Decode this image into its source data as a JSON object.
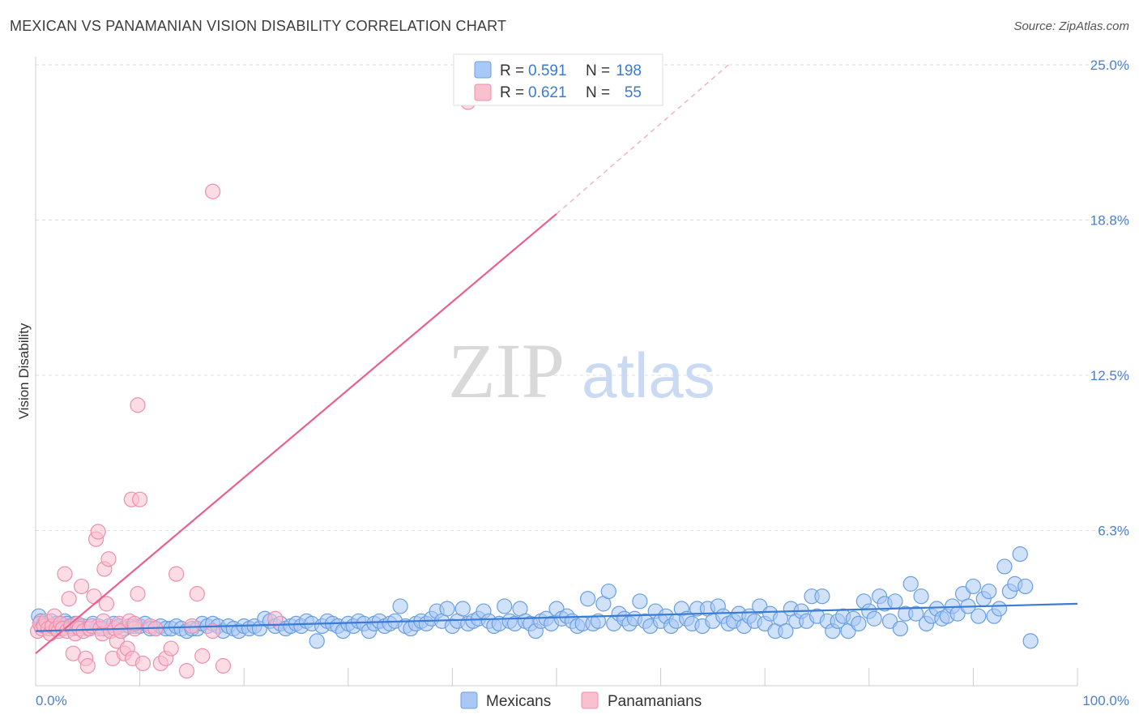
{
  "header": {
    "title": "MEXICAN VS PANAMANIAN VISION DISABILITY CORRELATION CHART",
    "source": "Source: ZipAtlas.com"
  },
  "watermark": {
    "zip": "ZIP",
    "atlas": "atlas"
  },
  "legend": {
    "r_label": "R =",
    "n_label": "N =",
    "items": [
      {
        "r": "0.591",
        "n": "198",
        "fill": "#aac8f5",
        "stroke": "#6a9fe0"
      },
      {
        "r": "0.621",
        "n": "55",
        "fill": "#f9c0d0",
        "stroke": "#ef8fab"
      }
    ]
  },
  "colors": {
    "blue": "#3a7bd5",
    "pink": "#e8608f",
    "blue_fill": "#aac8f5",
    "pink_fill": "#f9c0d0"
  },
  "chart_data": {
    "type": "scatter",
    "title": "MEXICAN VS PANAMANIAN VISION DISABILITY CORRELATION CHART",
    "xlabel": "",
    "ylabel": "Vision Disability",
    "xlim": [
      0,
      100
    ],
    "ylim": [
      0,
      25
    ],
    "y_ticks": [
      {
        "value": 6.25,
        "label": "6.3%"
      },
      {
        "value": 12.5,
        "label": "12.5%"
      },
      {
        "value": 18.75,
        "label": "18.8%"
      },
      {
        "value": 25.0,
        "label": "25.0%"
      }
    ],
    "x_tick_labels": {
      "min": "0.0%",
      "max": "100.0%"
    },
    "series": [
      {
        "name": "Mexicans",
        "r": 0.591,
        "n": 198,
        "trend": {
          "x": [
            0,
            100
          ],
          "y": [
            2.2,
            3.3
          ]
        },
        "points": [
          [
            0.3,
            2.8
          ],
          [
            0.5,
            2.6
          ],
          [
            0.8,
            2.5
          ],
          [
            1.0,
            2.4
          ],
          [
            1.3,
            2.3
          ],
          [
            1.5,
            2.6
          ],
          [
            1.8,
            2.4
          ],
          [
            2.0,
            2.5
          ],
          [
            2.3,
            2.3
          ],
          [
            2.5,
            2.4
          ],
          [
            2.8,
            2.6
          ],
          [
            3.0,
            2.5
          ],
          [
            3.3,
            2.4
          ],
          [
            3.5,
            2.3
          ],
          [
            3.8,
            2.5
          ],
          [
            4.0,
            2.4
          ],
          [
            4.5,
            2.4
          ],
          [
            5.0,
            2.3
          ],
          [
            5.5,
            2.5
          ],
          [
            6.0,
            2.4
          ],
          [
            6.5,
            2.3
          ],
          [
            7.0,
            2.4
          ],
          [
            7.5,
            2.5
          ],
          [
            8.0,
            2.4
          ],
          [
            8.5,
            2.3
          ],
          [
            9.0,
            2.4
          ],
          [
            9.5,
            2.4
          ],
          [
            10.0,
            2.4
          ],
          [
            10.5,
            2.5
          ],
          [
            11.0,
            2.3
          ],
          [
            11.5,
            2.3
          ],
          [
            12.0,
            2.4
          ],
          [
            12.5,
            2.3
          ],
          [
            13.0,
            2.3
          ],
          [
            13.5,
            2.4
          ],
          [
            14.0,
            2.3
          ],
          [
            14.5,
            2.2
          ],
          [
            15.0,
            2.3
          ],
          [
            15.5,
            2.3
          ],
          [
            16.0,
            2.5
          ],
          [
            16.5,
            2.4
          ],
          [
            17.0,
            2.5
          ],
          [
            17.5,
            2.4
          ],
          [
            18.0,
            2.2
          ],
          [
            18.5,
            2.4
          ],
          [
            19.0,
            2.3
          ],
          [
            19.5,
            2.2
          ],
          [
            20.0,
            2.4
          ],
          [
            20.5,
            2.3
          ],
          [
            21.0,
            2.4
          ],
          [
            21.5,
            2.3
          ],
          [
            22.0,
            2.7
          ],
          [
            22.5,
            2.6
          ],
          [
            23.0,
            2.4
          ],
          [
            23.5,
            2.5
          ],
          [
            24.0,
            2.3
          ],
          [
            24.5,
            2.4
          ],
          [
            25.0,
            2.5
          ],
          [
            25.5,
            2.4
          ],
          [
            26.0,
            2.6
          ],
          [
            26.5,
            2.5
          ],
          [
            27.0,
            1.8
          ],
          [
            27.5,
            2.4
          ],
          [
            28.0,
            2.6
          ],
          [
            28.5,
            2.5
          ],
          [
            29.0,
            2.4
          ],
          [
            29.5,
            2.2
          ],
          [
            30.0,
            2.5
          ],
          [
            30.5,
            2.4
          ],
          [
            31.0,
            2.6
          ],
          [
            31.5,
            2.5
          ],
          [
            32.0,
            2.2
          ],
          [
            32.5,
            2.5
          ],
          [
            33.0,
            2.6
          ],
          [
            33.5,
            2.4
          ],
          [
            34.0,
            2.5
          ],
          [
            34.5,
            2.6
          ],
          [
            35.0,
            3.2
          ],
          [
            35.5,
            2.4
          ],
          [
            36.0,
            2.3
          ],
          [
            36.5,
            2.5
          ],
          [
            37.0,
            2.6
          ],
          [
            37.5,
            2.5
          ],
          [
            38.0,
            2.7
          ],
          [
            38.5,
            3.0
          ],
          [
            39.0,
            2.6
          ],
          [
            39.5,
            3.1
          ],
          [
            40.0,
            2.4
          ],
          [
            40.5,
            2.6
          ],
          [
            41.0,
            3.1
          ],
          [
            41.5,
            2.5
          ],
          [
            42.0,
            2.6
          ],
          [
            42.5,
            2.7
          ],
          [
            43.0,
            3.0
          ],
          [
            43.5,
            2.6
          ],
          [
            44.0,
            2.4
          ],
          [
            44.5,
            2.5
          ],
          [
            45.0,
            3.2
          ],
          [
            45.5,
            2.6
          ],
          [
            46.0,
            2.5
          ],
          [
            46.5,
            3.1
          ],
          [
            47.0,
            2.6
          ],
          [
            47.5,
            2.5
          ],
          [
            48.0,
            2.2
          ],
          [
            48.5,
            2.6
          ],
          [
            49.0,
            2.7
          ],
          [
            49.5,
            2.5
          ],
          [
            50.0,
            3.1
          ],
          [
            50.5,
            2.7
          ],
          [
            51.0,
            2.8
          ],
          [
            51.5,
            2.6
          ],
          [
            52.0,
            2.4
          ],
          [
            52.5,
            2.5
          ],
          [
            53.0,
            3.5
          ],
          [
            53.5,
            2.5
          ],
          [
            54.0,
            2.6
          ],
          [
            54.5,
            3.3
          ],
          [
            55.0,
            3.8
          ],
          [
            55.5,
            2.5
          ],
          [
            56.0,
            2.9
          ],
          [
            56.5,
            2.7
          ],
          [
            57.0,
            2.5
          ],
          [
            57.5,
            2.7
          ],
          [
            58.0,
            3.4
          ],
          [
            58.5,
            2.6
          ],
          [
            59.0,
            2.4
          ],
          [
            59.5,
            3.0
          ],
          [
            60.0,
            2.6
          ],
          [
            60.5,
            2.8
          ],
          [
            61.0,
            2.4
          ],
          [
            61.5,
            2.6
          ],
          [
            62.0,
            3.1
          ],
          [
            62.5,
            2.7
          ],
          [
            63.0,
            2.5
          ],
          [
            63.5,
            3.1
          ],
          [
            64.0,
            2.4
          ],
          [
            64.5,
            3.1
          ],
          [
            65.0,
            2.6
          ],
          [
            65.5,
            3.2
          ],
          [
            66.0,
            2.8
          ],
          [
            66.5,
            2.5
          ],
          [
            67.0,
            2.6
          ],
          [
            67.5,
            2.9
          ],
          [
            68.0,
            2.4
          ],
          [
            68.5,
            2.8
          ],
          [
            69.0,
            2.6
          ],
          [
            69.5,
            3.2
          ],
          [
            70.0,
            2.5
          ],
          [
            70.5,
            2.9
          ],
          [
            71.0,
            2.2
          ],
          [
            71.5,
            2.7
          ],
          [
            72.0,
            2.2
          ],
          [
            72.5,
            3.1
          ],
          [
            73.0,
            2.6
          ],
          [
            73.5,
            3.0
          ],
          [
            74.0,
            2.6
          ],
          [
            74.5,
            3.6
          ],
          [
            75.0,
            2.8
          ],
          [
            75.5,
            3.6
          ],
          [
            76.0,
            2.6
          ],
          [
            76.5,
            2.2
          ],
          [
            77.0,
            2.6
          ],
          [
            77.5,
            2.8
          ],
          [
            78.0,
            2.2
          ],
          [
            78.5,
            2.7
          ],
          [
            79.0,
            2.5
          ],
          [
            79.5,
            3.4
          ],
          [
            80.0,
            3.0
          ],
          [
            80.5,
            2.7
          ],
          [
            81.0,
            3.6
          ],
          [
            81.5,
            3.3
          ],
          [
            82.0,
            2.6
          ],
          [
            82.5,
            3.4
          ],
          [
            83.0,
            2.3
          ],
          [
            83.5,
            2.9
          ],
          [
            84.0,
            4.1
          ],
          [
            84.5,
            2.9
          ],
          [
            85.0,
            3.6
          ],
          [
            85.5,
            2.5
          ],
          [
            86.0,
            2.8
          ],
          [
            86.5,
            3.1
          ],
          [
            87.0,
            2.7
          ],
          [
            87.5,
            2.8
          ],
          [
            88.0,
            3.2
          ],
          [
            88.5,
            2.9
          ],
          [
            89.0,
            3.7
          ],
          [
            89.5,
            3.2
          ],
          [
            90.0,
            4.0
          ],
          [
            90.5,
            2.8
          ],
          [
            91.0,
            3.5
          ],
          [
            91.5,
            3.8
          ],
          [
            92.0,
            2.8
          ],
          [
            92.5,
            3.1
          ],
          [
            93.0,
            4.8
          ],
          [
            93.5,
            3.8
          ],
          [
            94.0,
            4.1
          ],
          [
            94.5,
            5.3
          ],
          [
            95.0,
            4.0
          ],
          [
            95.5,
            1.8
          ]
        ]
      },
      {
        "name": "Panamanians",
        "r": 0.621,
        "n": 55,
        "trend": {
          "x": [
            0,
            50
          ],
          "y": [
            1.3,
            19.0
          ]
        },
        "trend_dashed": {
          "x": [
            50,
            66.5
          ],
          "y": [
            19.0,
            25.0
          ]
        },
        "points": [
          [
            0.2,
            2.2
          ],
          [
            0.4,
            2.5
          ],
          [
            0.6,
            2.3
          ],
          [
            0.8,
            2.4
          ],
          [
            1.0,
            2.6
          ],
          [
            1.2,
            2.3
          ],
          [
            1.4,
            2.1
          ],
          [
            1.6,
            2.4
          ],
          [
            1.8,
            2.8
          ],
          [
            2.0,
            2.3
          ],
          [
            2.2,
            2.2
          ],
          [
            2.4,
            2.5
          ],
          [
            2.6,
            2.3
          ],
          [
            2.8,
            4.5
          ],
          [
            3.0,
            2.2
          ],
          [
            3.2,
            3.5
          ],
          [
            3.4,
            2.4
          ],
          [
            3.6,
            1.3
          ],
          [
            3.8,
            2.1
          ],
          [
            4.0,
            2.5
          ],
          [
            4.2,
            2.3
          ],
          [
            4.4,
            4.0
          ],
          [
            4.6,
            2.2
          ],
          [
            4.8,
            1.1
          ],
          [
            5.0,
            0.8
          ],
          [
            5.2,
            2.3
          ],
          [
            5.4,
            2.4
          ],
          [
            5.6,
            3.6
          ],
          [
            5.8,
            5.9
          ],
          [
            6.0,
            6.2
          ],
          [
            6.2,
            2.3
          ],
          [
            6.4,
            2.1
          ],
          [
            6.6,
            4.7
          ],
          [
            6.8,
            3.3
          ],
          [
            7.0,
            5.1
          ],
          [
            7.2,
            2.2
          ],
          [
            7.4,
            1.1
          ],
          [
            7.6,
            2.3
          ],
          [
            7.8,
            1.8
          ],
          [
            8.0,
            2.5
          ],
          [
            8.2,
            2.2
          ],
          [
            8.5,
            1.3
          ],
          [
            8.8,
            1.5
          ],
          [
            9.0,
            2.6
          ],
          [
            9.3,
            1.1
          ],
          [
            9.5,
            2.3
          ],
          [
            9.8,
            3.7
          ],
          [
            10.3,
            0.9
          ],
          [
            11.0,
            2.4
          ],
          [
            11.5,
            2.3
          ],
          [
            12.0,
            0.9
          ],
          [
            12.5,
            1.1
          ],
          [
            15.0,
            2.4
          ],
          [
            16.0,
            1.2
          ],
          [
            17.0,
            2.2
          ]
        ],
        "outliers": [
          [
            9.2,
            7.5
          ],
          [
            10.0,
            7.5
          ],
          [
            9.8,
            11.3
          ],
          [
            13.5,
            4.5
          ],
          [
            14.5,
            0.6
          ],
          [
            15.5,
            3.7
          ],
          [
            17.0,
            19.9
          ],
          [
            18.0,
            0.8
          ],
          [
            23.0,
            2.7
          ],
          [
            41.5,
            23.5
          ],
          [
            13.0,
            1.5
          ],
          [
            6.5,
            2.6
          ],
          [
            9.5,
            2.5
          ]
        ]
      }
    ],
    "legend_bottom": [
      "Mexicans",
      "Panamanians"
    ]
  }
}
